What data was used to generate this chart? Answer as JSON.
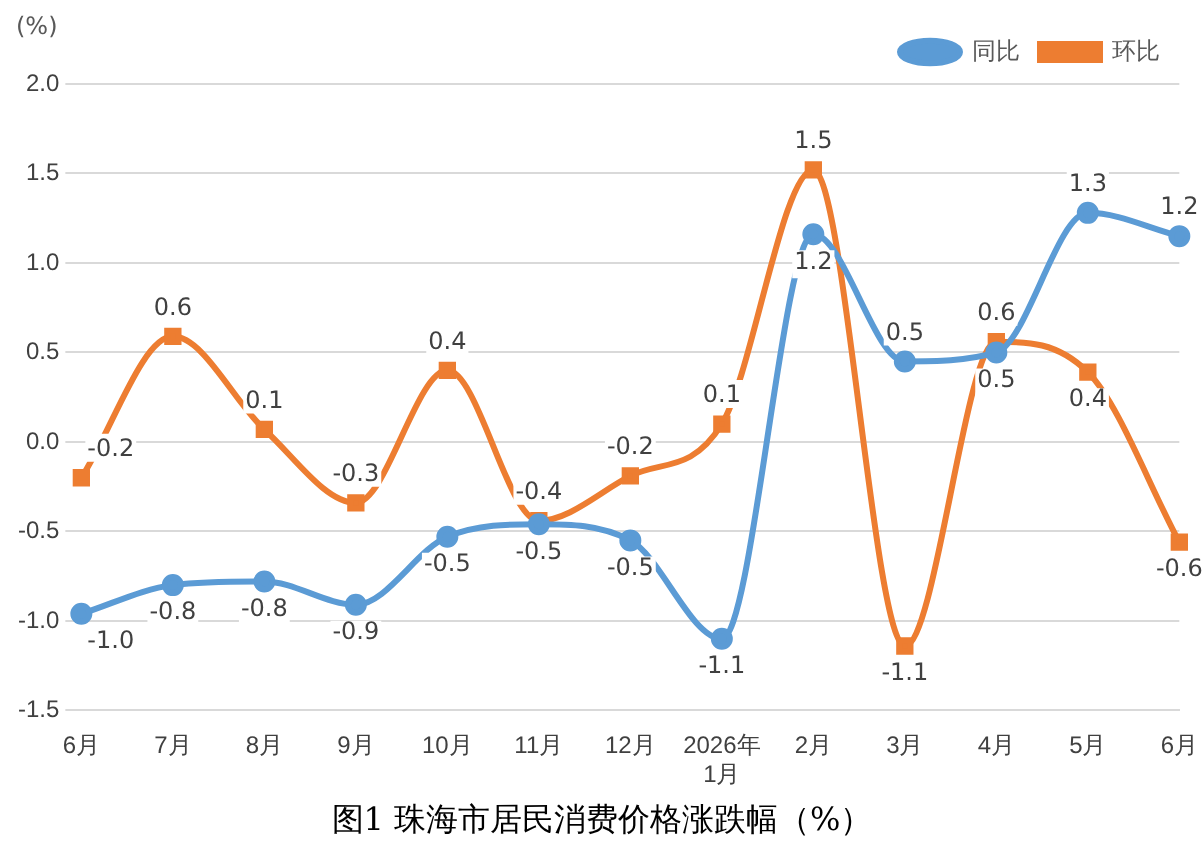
{
  "chart_data": {
    "type": "line",
    "title": "图1  珠海市居民消费价格涨跌幅（%）",
    "ylabel": "(%)",
    "categories": [
      "6月",
      "7月",
      "8月",
      "9月",
      "10月",
      "11月",
      "12月",
      "2026年\n1月",
      "2月",
      "3月",
      "4月",
      "5月",
      "6月"
    ],
    "series": [
      {
        "name": "同比",
        "color": "#5b9bd5",
        "marker": "circle",
        "values": [
          -0.96,
          -0.8,
          -0.78,
          -0.91,
          -0.53,
          -0.46,
          -0.55,
          -1.1,
          1.16,
          0.45,
          0.5,
          1.28,
          1.15
        ],
        "value_labels": [
          "-1.0",
          "-0.8",
          "-0.8",
          "-0.9",
          "-0.5",
          "-0.5",
          "-0.5",
          "-1.1",
          "1.2",
          "0.5",
          "0.5",
          "1.3",
          "1.2"
        ]
      },
      {
        "name": "环比",
        "color": "#ed7d31",
        "marker": "square",
        "values": [
          -0.2,
          0.59,
          0.07,
          -0.34,
          0.4,
          -0.44,
          -0.19,
          0.1,
          1.52,
          -1.14,
          0.56,
          0.39,
          -0.56
        ],
        "value_labels": [
          "-0.2",
          "0.6",
          "0.1",
          "-0.3",
          "0.4",
          "-0.4",
          "-0.2",
          "0.1",
          "1.5",
          "-1.1",
          "0.6",
          "0.4",
          "-0.6"
        ]
      }
    ],
    "ylim": [
      -1.5,
      2.0
    ],
    "yticks": [
      -1.5,
      {
        "value": -1,
        "label": "-1.0"
      },
      -0.5,
      {
        "value": 0,
        "label": "0.0"
      },
      0.5,
      {
        "value": 1,
        "label": "1.0"
      },
      1.5,
      {
        "value": 2,
        "label": "2.0"
      }
    ],
    "grid": "y",
    "legend": "top right"
  }
}
